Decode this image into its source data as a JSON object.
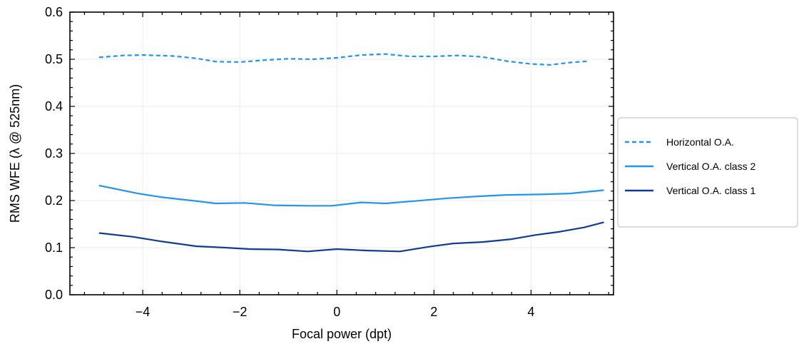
{
  "chart_data": {
    "type": "line",
    "title": "",
    "xlabel": "Focal power (dpt)",
    "ylabel": "RMS WFE (λ @ 525nm)",
    "xlim": [
      -5.5,
      5.7
    ],
    "ylim": [
      0.0,
      0.6
    ],
    "xticks": [
      -4,
      -2,
      0,
      2,
      4
    ],
    "xtick_labels": [
      "−4",
      "−2",
      "0",
      "2",
      "4"
    ],
    "yticks": [
      0.0,
      0.1,
      0.2,
      0.3,
      0.4,
      0.5,
      0.6
    ],
    "ytick_labels": [
      "0.0",
      "0.1",
      "0.2",
      "0.3",
      "0.4",
      "0.5",
      "0.6"
    ],
    "grid": true,
    "legend_position": "right, outside plot",
    "series": [
      {
        "name": "Horizontal O.A.",
        "color": "#1e96f0",
        "style": "dashed",
        "x": [
          -4.9,
          -4.4,
          -4.0,
          -3.4,
          -2.9,
          -2.5,
          -2.0,
          -1.5,
          -1.0,
          -0.5,
          0.0,
          0.5,
          1.0,
          1.5,
          2.0,
          2.5,
          3.0,
          3.5,
          4.0,
          4.4,
          4.8,
          5.2
        ],
        "y": [
          0.504,
          0.508,
          0.509,
          0.507,
          0.502,
          0.495,
          0.494,
          0.498,
          0.501,
          0.5,
          0.503,
          0.509,
          0.511,
          0.506,
          0.506,
          0.508,
          0.505,
          0.496,
          0.49,
          0.488,
          0.493,
          0.496
        ]
      },
      {
        "name": "Vertical O.A. class 2",
        "color": "#1e96f0",
        "style": "solid",
        "x": [
          -4.9,
          -4.1,
          -3.6,
          -2.9,
          -2.5,
          -1.9,
          -1.3,
          -0.6,
          -0.1,
          0.5,
          1.0,
          1.6,
          2.3,
          2.9,
          3.5,
          4.2,
          4.8,
          5.5
        ],
        "y": [
          0.232,
          0.215,
          0.207,
          0.199,
          0.194,
          0.195,
          0.19,
          0.189,
          0.189,
          0.196,
          0.194,
          0.199,
          0.205,
          0.209,
          0.212,
          0.213,
          0.215,
          0.222
        ]
      },
      {
        "name": "Vertical O.A. class 1",
        "color": "#0f3c96",
        "style": "solid",
        "x": [
          -4.9,
          -4.2,
          -3.6,
          -2.9,
          -2.3,
          -1.8,
          -1.2,
          -0.6,
          0.0,
          0.6,
          1.3,
          1.9,
          2.4,
          3.0,
          3.6,
          4.1,
          4.6,
          5.1,
          5.5
        ],
        "y": [
          0.131,
          0.123,
          0.113,
          0.103,
          0.1,
          0.097,
          0.096,
          0.092,
          0.097,
          0.094,
          0.092,
          0.102,
          0.109,
          0.112,
          0.118,
          0.127,
          0.134,
          0.143,
          0.154
        ]
      }
    ]
  }
}
